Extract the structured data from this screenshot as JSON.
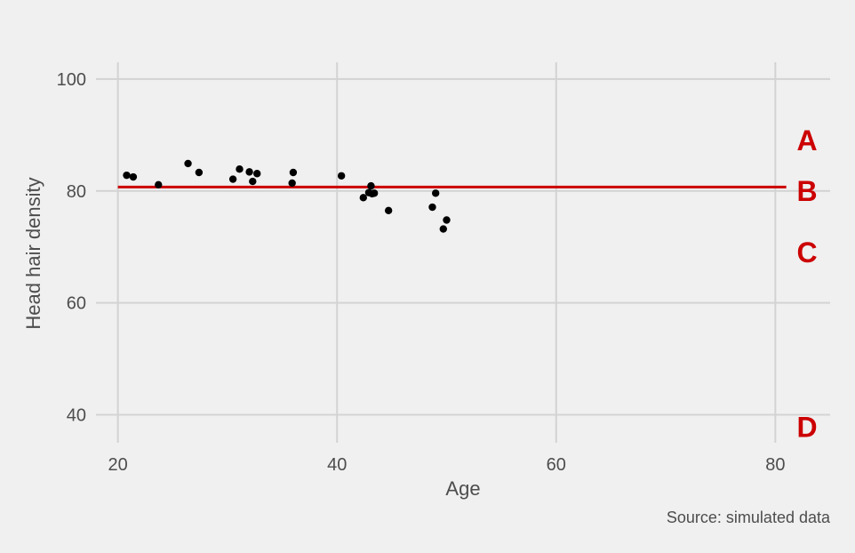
{
  "colors": {
    "background": "#f0f0f0",
    "grid": "#d3d3d3",
    "points": "#000000",
    "reference_line": "#cc0000",
    "text": "#4d4d4d"
  },
  "chart_data": {
    "type": "scatter",
    "title": "",
    "xlabel": "Age",
    "ylabel": "Head hair density",
    "caption": "Source: simulated data",
    "xlim": [
      18,
      85
    ],
    "ylim": [
      35,
      103
    ],
    "x_ticks": [
      20,
      40,
      60,
      80
    ],
    "y_ticks": [
      40,
      60,
      80,
      100
    ],
    "grid": true,
    "series": [
      {
        "points": [
          {
            "x": 20.8,
            "y": 82.8
          },
          {
            "x": 21.4,
            "y": 82.5
          },
          {
            "x": 23.7,
            "y": 81.1
          },
          {
            "x": 26.4,
            "y": 84.9
          },
          {
            "x": 27.4,
            "y": 83.3
          },
          {
            "x": 30.5,
            "y": 82.1
          },
          {
            "x": 31.1,
            "y": 83.9
          },
          {
            "x": 32.0,
            "y": 83.4
          },
          {
            "x": 32.3,
            "y": 81.7
          },
          {
            "x": 32.7,
            "y": 83.1
          },
          {
            "x": 35.9,
            "y": 81.4
          },
          {
            "x": 36.0,
            "y": 83.3
          },
          {
            "x": 40.4,
            "y": 82.7
          },
          {
            "x": 42.4,
            "y": 78.8
          },
          {
            "x": 42.9,
            "y": 79.7
          },
          {
            "x": 43.1,
            "y": 80.9
          },
          {
            "x": 43.2,
            "y": 79.5
          },
          {
            "x": 43.4,
            "y": 79.6
          },
          {
            "x": 44.7,
            "y": 76.5
          },
          {
            "x": 48.7,
            "y": 77.1
          },
          {
            "x": 49.0,
            "y": 79.6
          },
          {
            "x": 49.7,
            "y": 73.2
          },
          {
            "x": 50.0,
            "y": 74.8
          }
        ]
      }
    ],
    "reference_line": {
      "y": 80.7,
      "x_start": 20,
      "x_end": 81
    },
    "annotations": [
      {
        "label": "A",
        "y": 89
      },
      {
        "label": "B",
        "y": 80
      },
      {
        "label": "C",
        "y": 69
      },
      {
        "label": "D",
        "y": 37.8
      }
    ]
  }
}
